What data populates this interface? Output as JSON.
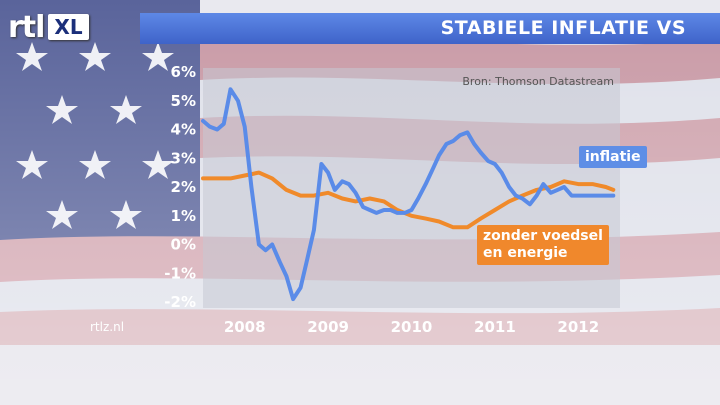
{
  "logo": {
    "brand": "rtl",
    "sub": "XL"
  },
  "header": {
    "title": "STABIELE INFLATIE VS"
  },
  "footer": {
    "site": "rtlz.nl"
  },
  "colors": {
    "accent": "#4a72d6",
    "series_inflatie": "#5a8be8",
    "series_core": "#f08a2a"
  },
  "chart_data": {
    "type": "line",
    "title": "STABIELE INFLATIE VS",
    "source": "Bron: Thomson Datastream",
    "xlabel": "",
    "ylabel": "",
    "xlim": [
      2007.5,
      2012.5
    ],
    "ylim": [
      -2,
      6
    ],
    "y_ticks": [
      -2,
      -1,
      0,
      1,
      2,
      3,
      4,
      5,
      6
    ],
    "y_tick_labels": [
      "-2%",
      "-1%",
      "0%",
      "1%",
      "2%",
      "3%",
      "4%",
      "5%",
      "6%"
    ],
    "x_ticks": [
      2008,
      2009,
      2010,
      2011,
      2012
    ],
    "x_tick_labels": [
      "2008",
      "2009",
      "2010",
      "2011",
      "2012"
    ],
    "grid": false,
    "series": [
      {
        "name": "inflatie",
        "color": "#5a8be8",
        "x": [
          2007.5,
          2007.58,
          2007.67,
          2007.75,
          2007.83,
          2007.92,
          2008.0,
          2008.08,
          2008.17,
          2008.25,
          2008.33,
          2008.42,
          2008.5,
          2008.58,
          2008.67,
          2008.75,
          2008.83,
          2008.92,
          2009.0,
          2009.08,
          2009.17,
          2009.25,
          2009.33,
          2009.42,
          2009.5,
          2009.58,
          2009.67,
          2009.75,
          2009.83,
          2009.92,
          2010.0,
          2010.08,
          2010.17,
          2010.25,
          2010.33,
          2010.42,
          2010.5,
          2010.58,
          2010.67,
          2010.75,
          2010.83,
          2010.92,
          2011.0,
          2011.08,
          2011.17,
          2011.25,
          2011.33,
          2011.42,
          2011.5,
          2011.58,
          2011.67,
          2011.75,
          2011.83,
          2011.92,
          2012.0,
          2012.08,
          2012.17,
          2012.25,
          2012.33,
          2012.42
        ],
        "values": [
          4.3,
          4.1,
          4.0,
          4.2,
          5.4,
          5.0,
          4.1,
          2.0,
          0.0,
          -0.2,
          0.0,
          -0.6,
          -1.1,
          -1.9,
          -1.5,
          -0.5,
          0.5,
          2.8,
          2.5,
          1.9,
          2.2,
          2.1,
          1.8,
          1.3,
          1.2,
          1.1,
          1.2,
          1.2,
          1.1,
          1.1,
          1.2,
          1.6,
          2.1,
          2.6,
          3.1,
          3.5,
          3.6,
          3.8,
          3.9,
          3.5,
          3.2,
          2.9,
          2.8,
          2.5,
          2.0,
          1.7,
          1.6,
          1.4,
          1.7,
          2.1,
          1.8,
          1.9,
          2.0,
          1.7,
          1.7,
          1.7,
          1.7,
          1.7,
          1.7,
          1.7
        ]
      },
      {
        "name": "zonder voedsel en energie",
        "color": "#f08a2a",
        "x": [
          2007.5,
          2007.67,
          2007.83,
          2008.0,
          2008.17,
          2008.33,
          2008.5,
          2008.67,
          2008.83,
          2009.0,
          2009.17,
          2009.33,
          2009.5,
          2009.67,
          2009.83,
          2010.0,
          2010.17,
          2010.33,
          2010.5,
          2010.67,
          2010.83,
          2011.0,
          2011.17,
          2011.33,
          2011.5,
          2011.67,
          2011.83,
          2012.0,
          2012.17,
          2012.33,
          2012.42
        ],
        "values": [
          2.3,
          2.3,
          2.3,
          2.4,
          2.5,
          2.3,
          1.9,
          1.7,
          1.7,
          1.8,
          1.6,
          1.5,
          1.6,
          1.5,
          1.2,
          1.0,
          0.9,
          0.8,
          0.6,
          0.6,
          0.9,
          1.2,
          1.5,
          1.7,
          1.9,
          2.0,
          2.2,
          2.1,
          2.1,
          2.0,
          1.9
        ]
      }
    ]
  }
}
